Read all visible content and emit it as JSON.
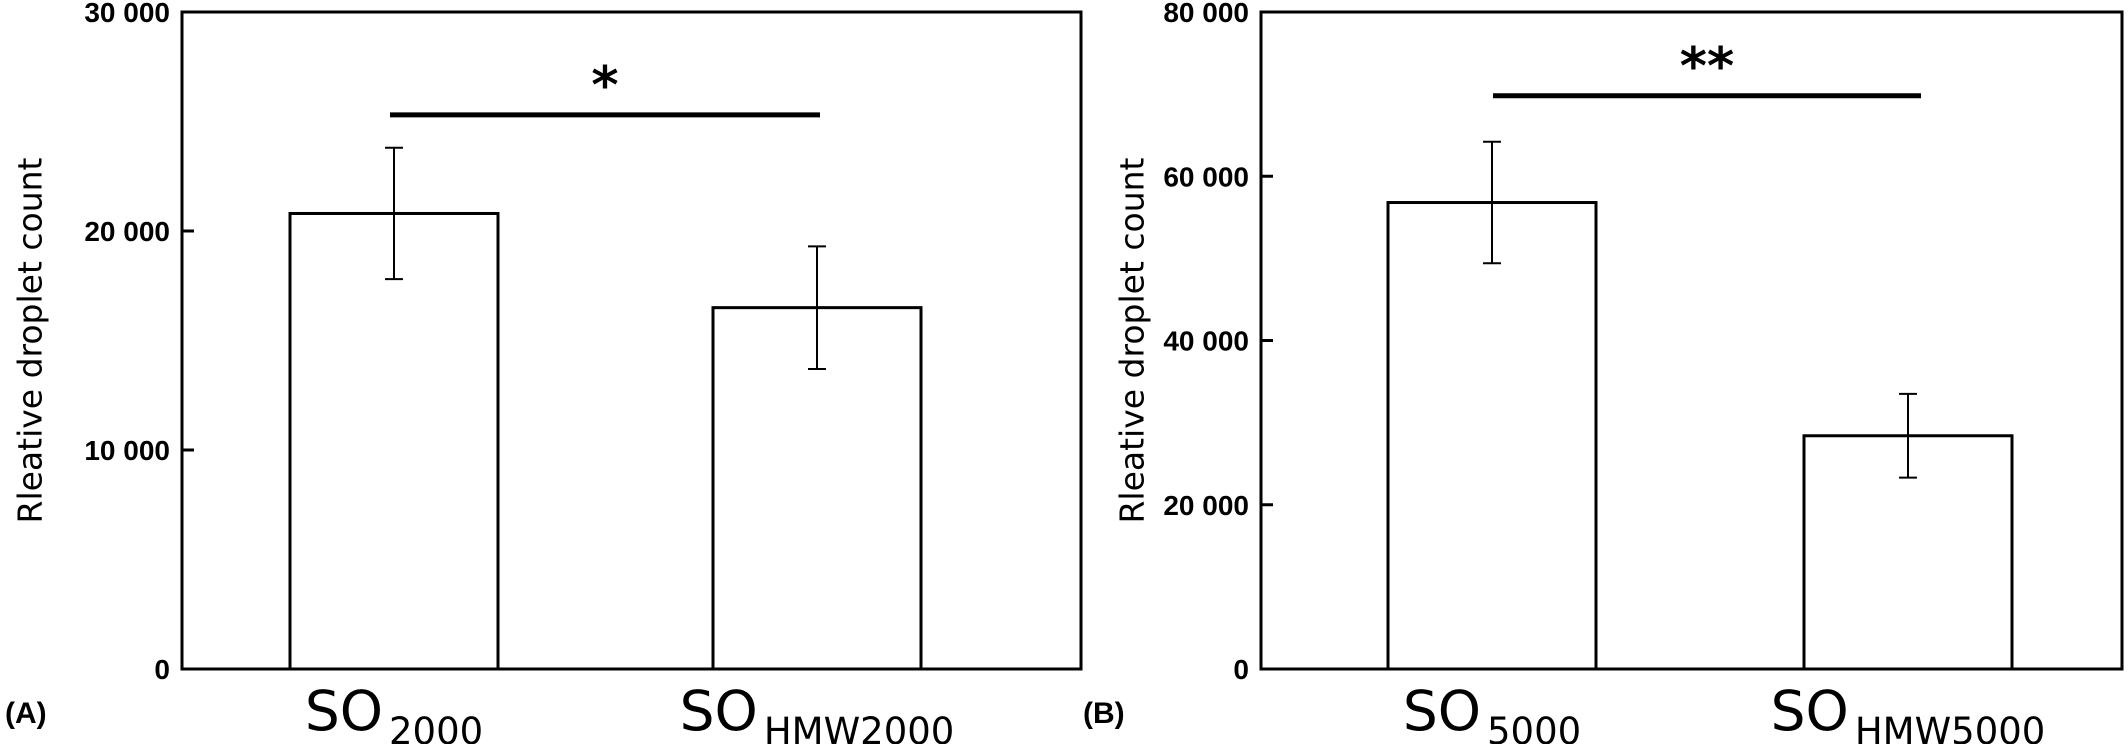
{
  "chart_data": [
    {
      "type": "bar",
      "panel_label": "(A)",
      "ylabel": "Rleative droplet count",
      "ylim": [
        0,
        30000
      ],
      "yticks": [
        {
          "value": 0,
          "label": "0"
        },
        {
          "value": 10000,
          "label": "10 000"
        },
        {
          "value": 20000,
          "label": "20 000"
        },
        {
          "value": 30000,
          "label": "30 000"
        }
      ],
      "categories": [
        {
          "main": "SO",
          "sub": "2000"
        },
        {
          "main": "SO",
          "sub": "HMW2000"
        }
      ],
      "values": [
        20800,
        16500
      ],
      "errors": [
        3000,
        2800
      ],
      "significance": {
        "label": "*",
        "value": 25300
      },
      "grid": false,
      "legend": "none"
    },
    {
      "type": "bar",
      "panel_label": "(B)",
      "ylabel": "Rleative droplet count",
      "ylim": [
        0,
        80000
      ],
      "yticks": [
        {
          "value": 0,
          "label": "0"
        },
        {
          "value": 20000,
          "label": "20 000"
        },
        {
          "value": 40000,
          "label": "40 000"
        },
        {
          "value": 60000,
          "label": "60 000"
        },
        {
          "value": 80000,
          "label": "80 000"
        }
      ],
      "categories": [
        {
          "main": "SO",
          "sub": "5000"
        },
        {
          "main": "SO",
          "sub": "HMW5000"
        }
      ],
      "values": [
        56800,
        28400
      ],
      "errors": [
        7400,
        5100
      ],
      "significance": {
        "label": "**",
        "value": 69800
      },
      "grid": false,
      "legend": "none"
    }
  ]
}
